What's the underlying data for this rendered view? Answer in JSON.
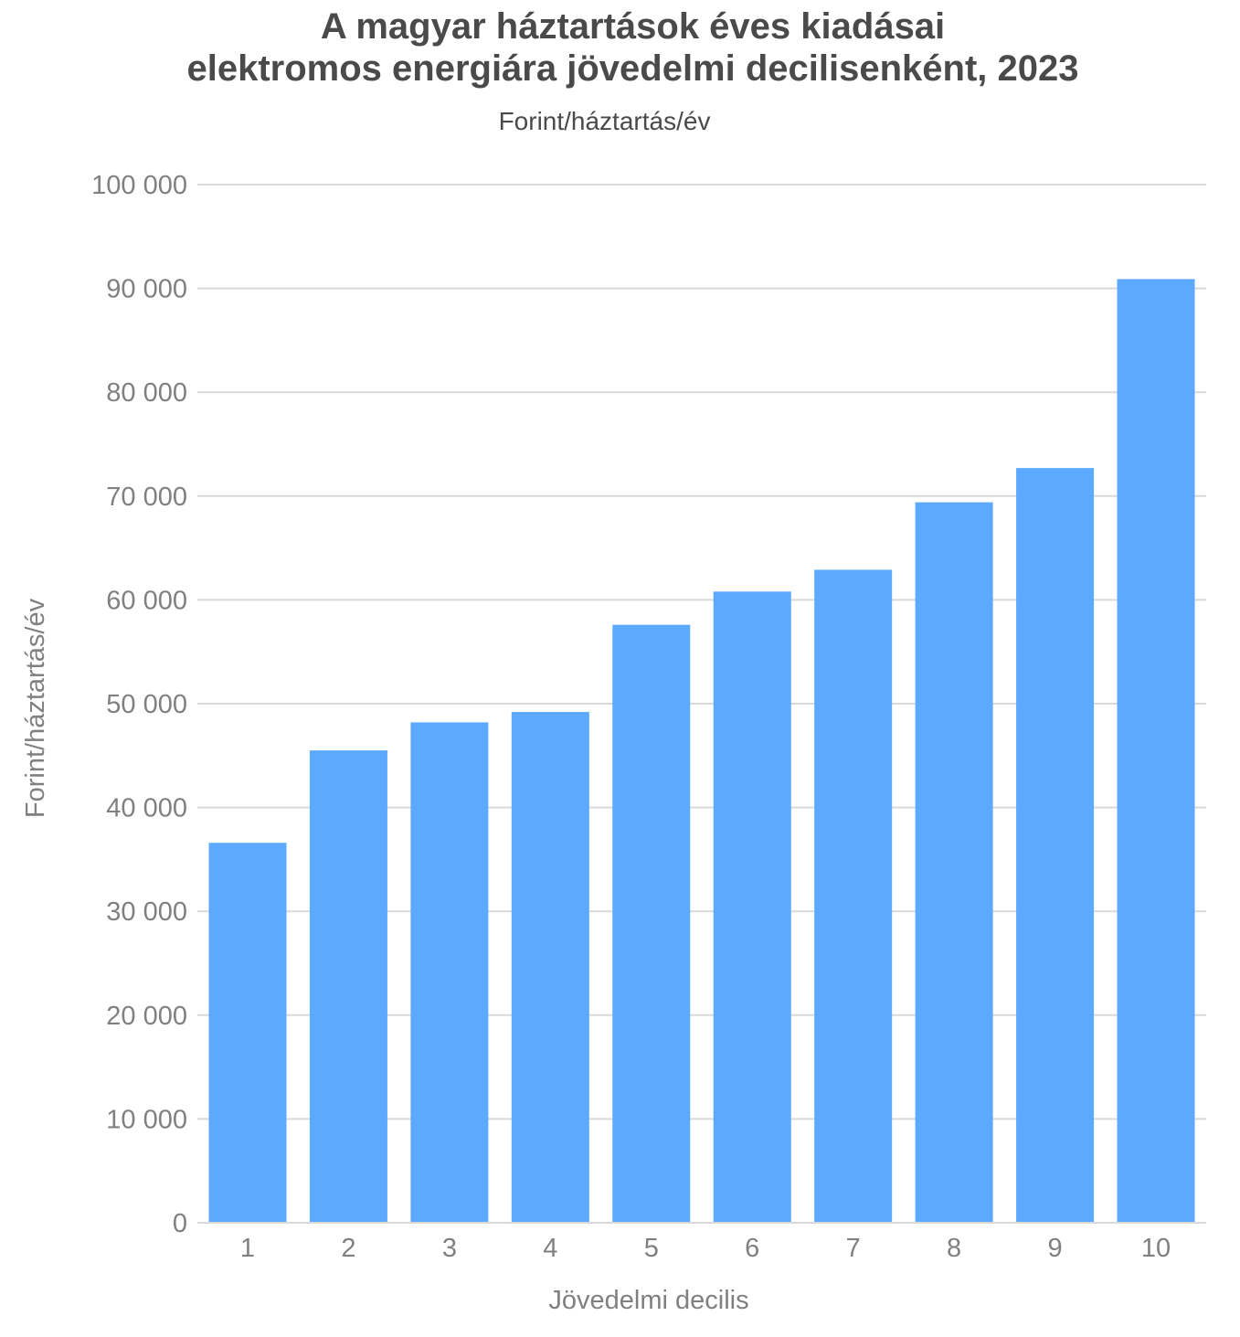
{
  "chart_data": {
    "type": "bar",
    "title_line1": "A magyar háztartások éves kiadásai",
    "title_line2": "elektromos energiára jövedelmi decilisenként, 2023",
    "subtitle": "Forint/háztartás/év",
    "xlabel": "Jövedelmi decilis",
    "ylabel": "Forint/háztartás/év",
    "categories": [
      "1",
      "2",
      "3",
      "4",
      "5",
      "6",
      "7",
      "8",
      "9",
      "10"
    ],
    "values": [
      36600,
      45500,
      48200,
      49200,
      57600,
      60800,
      62900,
      69400,
      72700,
      90900
    ],
    "ylim": [
      0,
      100000
    ],
    "yticks": [
      0,
      10000,
      20000,
      30000,
      40000,
      50000,
      60000,
      70000,
      80000,
      90000,
      100000
    ],
    "ytick_labels": [
      "0",
      "10 000",
      "20 000",
      "30 000",
      "40 000",
      "50 000",
      "60 000",
      "70 000",
      "80 000",
      "90 000",
      "100 000"
    ],
    "grid": true,
    "legend": "none",
    "bar_color": "#5caaff",
    "grid_color": "#d9d9d9"
  }
}
